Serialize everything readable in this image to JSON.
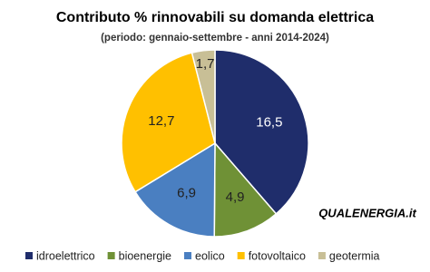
{
  "chart_data": {
    "type": "pie",
    "title": "Contributo  % rinnovabili su domanda elettrica",
    "subtitle": "(periodo: gennaio-settembre - anni 2014-2024)",
    "logo": "QUALENERGIA.it",
    "categories": [
      "idroelettrico",
      "bioenergie",
      "eolico",
      "fotovoltaico",
      "geotermia"
    ],
    "values": [
      16.5,
      4.9,
      6.9,
      12.7,
      1.7
    ],
    "value_labels": [
      "16,5",
      "4,9",
      "6,9",
      "12,7",
      "1,7"
    ],
    "colors": [
      "#1f2d6b",
      "#6f9136",
      "#4a7fc1",
      "#ffc000",
      "#c8bf96"
    ],
    "legend": "bottom"
  }
}
